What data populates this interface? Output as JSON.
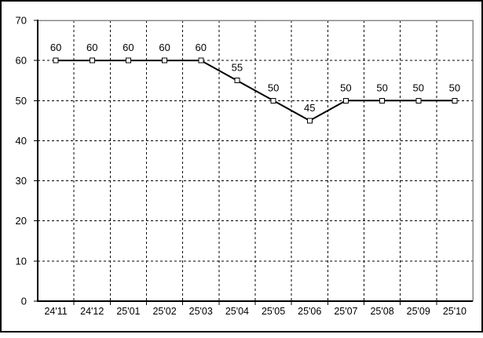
{
  "window": {
    "background_color": "#ffffff",
    "frame_border_color": "#000000"
  },
  "chart_data": {
    "type": "line",
    "categories": [
      "24'11",
      "24'12",
      "25'01",
      "25'02",
      "25'03",
      "25'04",
      "25'05",
      "25'06",
      "25'07",
      "25'08",
      "25'09",
      "25'10"
    ],
    "values": [
      60,
      60,
      60,
      60,
      60,
      55,
      50,
      45,
      50,
      50,
      50,
      50
    ],
    "data_labels": [
      "60",
      "60",
      "60",
      "60",
      "60",
      "55",
      "50",
      "45",
      "50",
      "50",
      "50",
      "50"
    ],
    "title": "",
    "xlabel": "",
    "ylabel": "",
    "ylim": [
      0,
      70
    ],
    "yticks": [
      0,
      10,
      20,
      30,
      40,
      50,
      60,
      70
    ],
    "ytick_labels": [
      "0",
      "10",
      "20",
      "30",
      "40",
      "50",
      "60",
      "70"
    ],
    "grid": true,
    "grid_style": "dashed",
    "legend": false,
    "marker": "open-square",
    "line_color": "#000000",
    "marker_fill": "#ffffff",
    "marker_border": "#000000",
    "grid_color": "#000000",
    "axis_color": "#000000",
    "plot_border_color": "#888888",
    "text_color": "#000000"
  }
}
